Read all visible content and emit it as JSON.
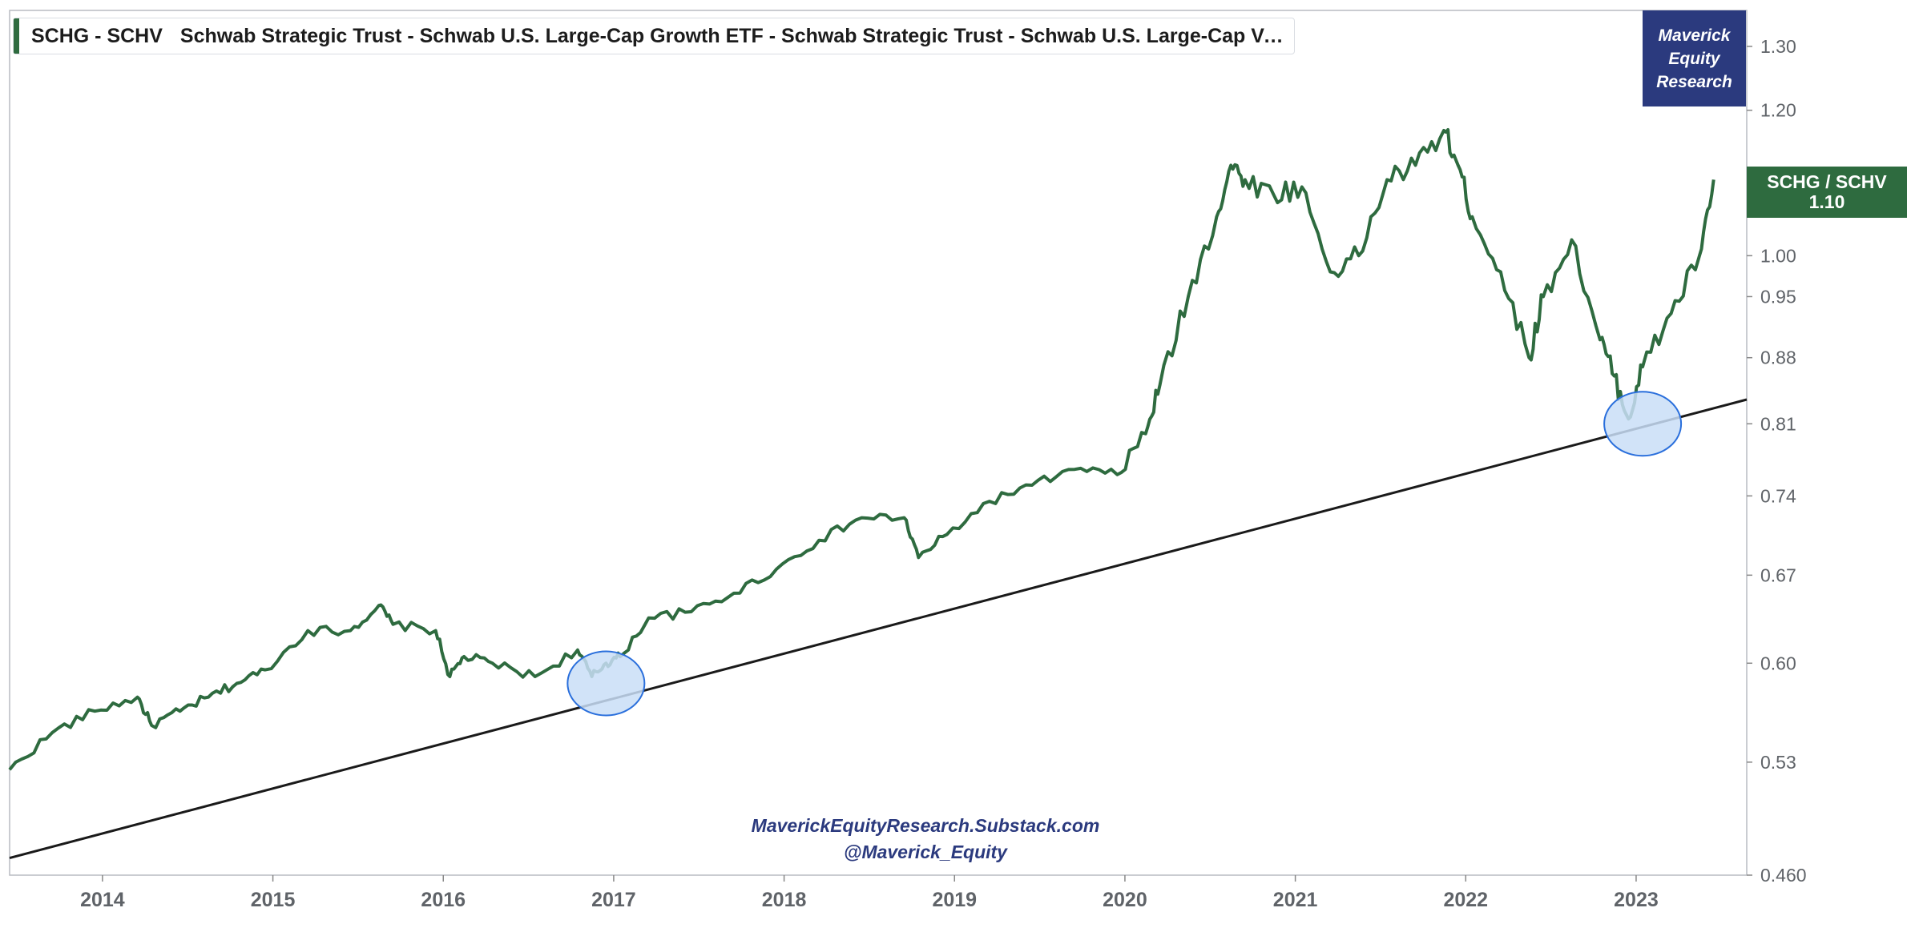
{
  "legend": {
    "symbol": "SCHG - SCHV",
    "description": "Schwab Strategic Trust - Schwab U.S. Large-Cap Growth ETF - Schwab Strategic Trust - Schwab U.S. Large-Cap Value E..."
  },
  "brand": {
    "line1": "Maverick",
    "line2": "Equity",
    "line3": "Research"
  },
  "price_tag": {
    "label": "SCHG / SCHV",
    "value": "1.10"
  },
  "watermark": {
    "line1": "MaverickEquityResearch.Substack.com",
    "line2": "@Maverick_Equity"
  },
  "colors": {
    "series": "#2e6b3f",
    "brand": "#2b3a7e",
    "trendline": "#1a1a1a",
    "highlight_fill": "#c9def7",
    "highlight_stroke": "#2a6fdc"
  },
  "chart_data": {
    "type": "line",
    "title": "SCHG - SCHV",
    "y_scale": "log",
    "ylim": [
      0.46,
      1.36
    ],
    "xlim": [
      "2013-06-15",
      "2023-08-25"
    ],
    "x_ticks": [
      "2014",
      "2015",
      "2016",
      "2017",
      "2018",
      "2019",
      "2020",
      "2021",
      "2022",
      "2023"
    ],
    "y_ticks": [
      "1.30",
      "1.20",
      "1.00",
      "0.95",
      "0.88",
      "0.81",
      "0.74",
      "0.67",
      "0.60",
      "0.53",
      "0.460"
    ],
    "series": [
      {
        "name": "SCHG / SCHV",
        "x": [
          "2013-06",
          "2013-09",
          "2013-12",
          "2014-03",
          "2014-04",
          "2014-06",
          "2014-08",
          "2014-10",
          "2014-12",
          "2015-03",
          "2015-06",
          "2015-08",
          "2015-09",
          "2015-12",
          "2016-01",
          "2016-02",
          "2016-04",
          "2016-07",
          "2016-10",
          "2016-11",
          "2016-12",
          "2017-01",
          "2017-03",
          "2017-06",
          "2017-09",
          "2017-12",
          "2018-03",
          "2018-06",
          "2018-09",
          "2018-10",
          "2018-12",
          "2019-03",
          "2019-06",
          "2019-09",
          "2019-12",
          "2020-02",
          "2020-03",
          "2020-05",
          "2020-07",
          "2020-08",
          "2020-09",
          "2020-11",
          "2021-01",
          "2021-03",
          "2021-05",
          "2021-07",
          "2021-09",
          "2021-11",
          "2021-12",
          "2022-01",
          "2022-03",
          "2022-05",
          "2022-06",
          "2022-08",
          "2022-10",
          "2022-11",
          "2022-12",
          "2023-01",
          "2023-03",
          "2023-05",
          "2023-06"
        ],
        "values": [
          0.525,
          0.55,
          0.565,
          0.575,
          0.555,
          0.565,
          0.575,
          0.585,
          0.595,
          0.625,
          0.625,
          0.645,
          0.63,
          0.625,
          0.59,
          0.605,
          0.6,
          0.59,
          0.61,
          0.59,
          0.6,
          0.605,
          0.635,
          0.64,
          0.655,
          0.675,
          0.7,
          0.72,
          0.72,
          0.685,
          0.705,
          0.735,
          0.75,
          0.765,
          0.76,
          0.8,
          0.85,
          0.95,
          1.05,
          1.12,
          1.1,
          1.08,
          1.09,
          0.98,
          1.0,
          1.1,
          1.12,
          1.17,
          1.12,
          1.05,
          0.98,
          0.88,
          0.95,
          1.02,
          0.9,
          0.86,
          0.815,
          0.87,
          0.93,
          1.0,
          1.1
        ]
      },
      {
        "name": "Trendline",
        "x": [
          "2013-06-15",
          "2023-08-25"
        ],
        "values": [
          0.47,
          0.835
        ]
      }
    ],
    "highlights": [
      {
        "date": "2016-12",
        "value": 0.585
      },
      {
        "date": "2023-01",
        "value": 0.81
      }
    ],
    "grid": false,
    "legend": "top-left"
  }
}
